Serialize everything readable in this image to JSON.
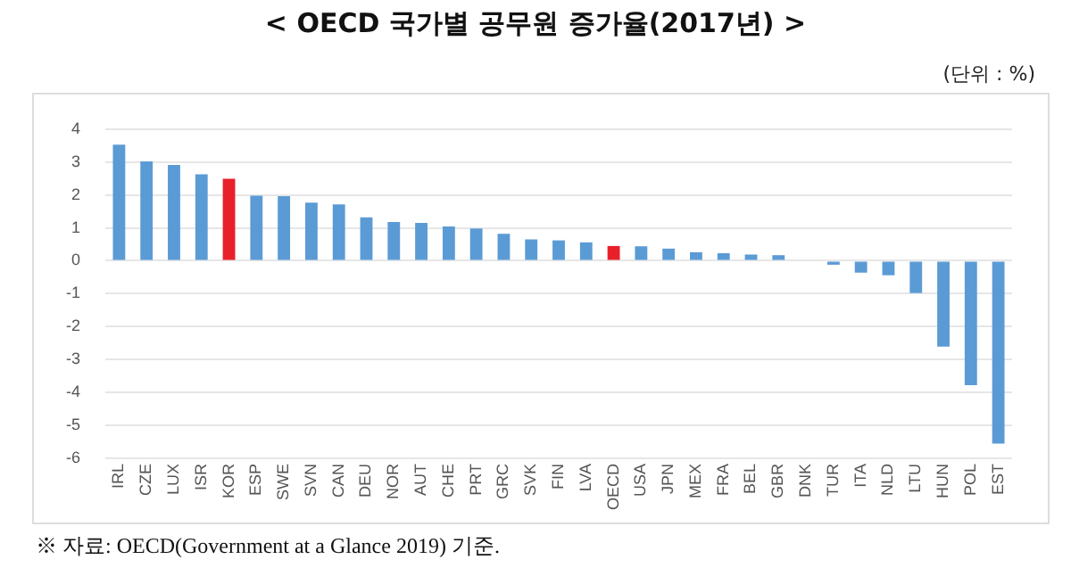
{
  "chart_data": {
    "type": "bar",
    "title": "< OECD 국가별 공무원 증가율(2017년) >",
    "subtitle": "(단위 : %)",
    "categories": [
      "IRL",
      "CZE",
      "LUX",
      "ISR",
      "KOR",
      "ESP",
      "SWE",
      "SVN",
      "CAN",
      "DEU",
      "NOR",
      "AUT",
      "CHE",
      "PRT",
      "GRC",
      "SVK",
      "FIN",
      "LVA",
      "OECD",
      "USA",
      "JPN",
      "MEX",
      "FRA",
      "BEL",
      "GBR",
      "DNK",
      "TUR",
      "ITA",
      "NLD",
      "LTU",
      "HUN",
      "POL",
      "EST"
    ],
    "values": [
      3.53,
      3.02,
      2.91,
      2.63,
      2.49,
      1.98,
      1.96,
      1.77,
      1.71,
      1.32,
      1.18,
      1.15,
      1.04,
      0.98,
      0.82,
      0.65,
      0.62,
      0.56,
      0.45,
      0.44,
      0.37,
      0.26,
      0.23,
      0.19,
      0.17,
      0,
      -0.12,
      -0.36,
      -0.44,
      -0.98,
      -2.61,
      -3.78,
      -5.55
    ],
    "colors": [
      "#5b9bd5",
      "#5b9bd5",
      "#5b9bd5",
      "#5b9bd5",
      "#e8202a",
      "#5b9bd5",
      "#5b9bd5",
      "#5b9bd5",
      "#5b9bd5",
      "#5b9bd5",
      "#5b9bd5",
      "#5b9bd5",
      "#5b9bd5",
      "#5b9bd5",
      "#5b9bd5",
      "#5b9bd5",
      "#5b9bd5",
      "#5b9bd5",
      "#e8202a",
      "#5b9bd5",
      "#5b9bd5",
      "#5b9bd5",
      "#5b9bd5",
      "#5b9bd5",
      "#5b9bd5",
      "#5b9bd5",
      "#5b9bd5",
      "#5b9bd5",
      "#5b9bd5",
      "#5b9bd5",
      "#5b9bd5",
      "#5b9bd5",
      "#5b9bd5"
    ],
    "ylim": [
      -6,
      4
    ],
    "yticks": [
      -6,
      -5,
      -4,
      -3,
      -2,
      -1,
      0,
      1,
      2,
      3,
      4
    ],
    "grid": "y",
    "annotations": [
      "※ 자료: OECD(Government at a Glance 2019) 기준."
    ]
  }
}
